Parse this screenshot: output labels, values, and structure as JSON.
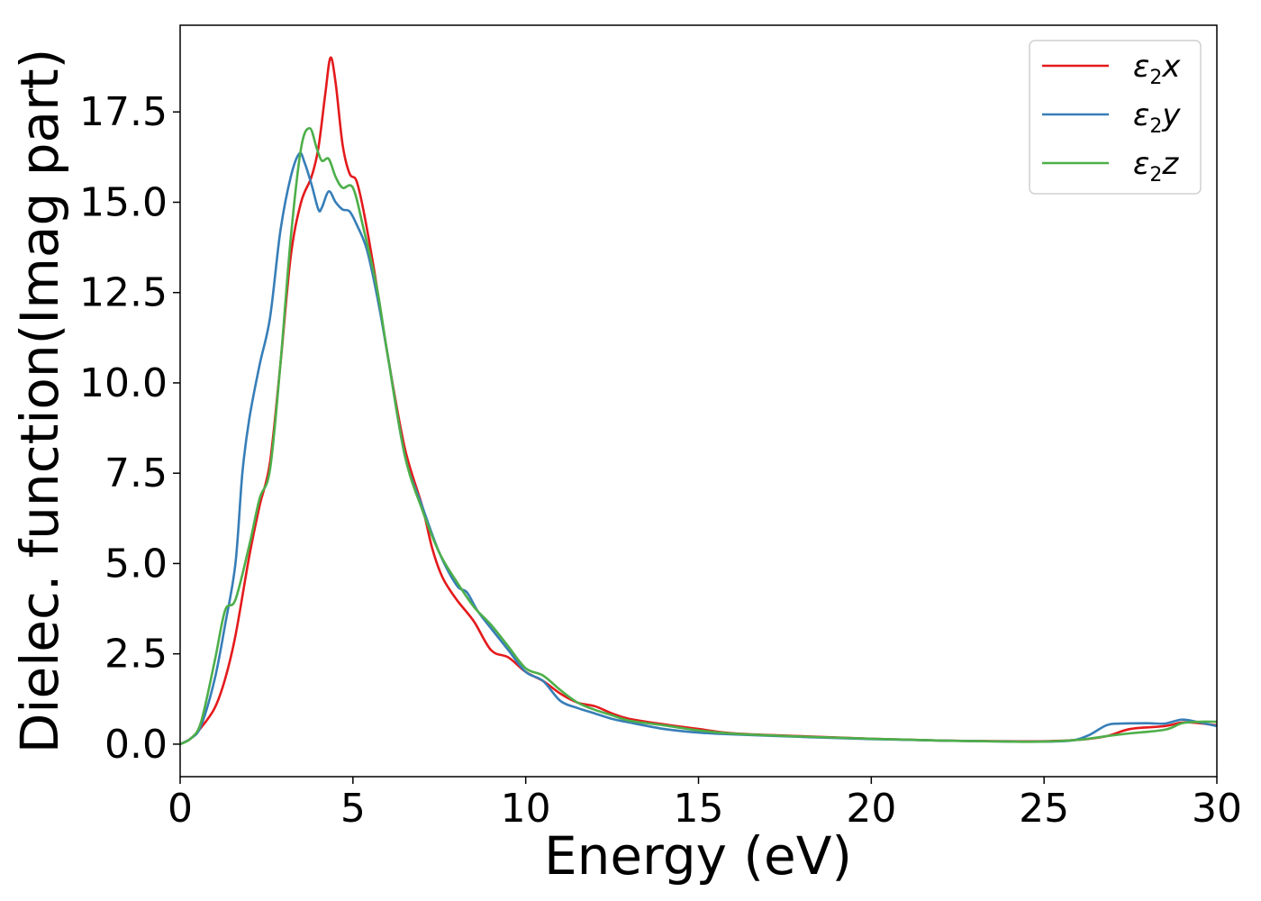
{
  "chart_data": {
    "type": "line",
    "title": "",
    "xlabel": "Energy (eV)",
    "ylabel": "Dielec. function(Imag part)",
    "xlim": [
      0,
      30
    ],
    "ylim": [
      -0.9,
      19.9
    ],
    "xticks": [
      0,
      5,
      10,
      15,
      20,
      25,
      30
    ],
    "xtick_labels": [
      "0",
      "5",
      "10",
      "15",
      "20",
      "25",
      "30"
    ],
    "yticks": [
      0.0,
      2.5,
      5.0,
      7.5,
      10.0,
      12.5,
      15.0,
      17.5
    ],
    "ytick_labels": [
      "0.0",
      "2.5",
      "5.0",
      "7.5",
      "10.0",
      "12.5",
      "15.0",
      "17.5"
    ],
    "grid": false,
    "legend_position": "top-right",
    "series": [
      {
        "name": "ε2x",
        "legend": {
          "base": "ε",
          "sub": "2",
          "suffix": "x"
        },
        "color": "#e41a1c",
        "points": [
          [
            0,
            0.0
          ],
          [
            0.3,
            0.15
          ],
          [
            0.6,
            0.45
          ],
          [
            1.0,
            1.0
          ],
          [
            1.3,
            1.8
          ],
          [
            1.6,
            3.0
          ],
          [
            2.0,
            5.2
          ],
          [
            2.3,
            6.6
          ],
          [
            2.6,
            7.8
          ],
          [
            2.9,
            10.5
          ],
          [
            3.2,
            13.5
          ],
          [
            3.5,
            15.0
          ],
          [
            3.8,
            15.7
          ],
          [
            4.0,
            16.5
          ],
          [
            4.2,
            18.0
          ],
          [
            4.35,
            19.0
          ],
          [
            4.5,
            18.3
          ],
          [
            4.7,
            16.6
          ],
          [
            4.9,
            15.8
          ],
          [
            5.1,
            15.6
          ],
          [
            5.3,
            14.8
          ],
          [
            5.6,
            13.2
          ],
          [
            6.0,
            10.8
          ],
          [
            6.5,
            8.2
          ],
          [
            7.0,
            6.6
          ],
          [
            7.3,
            5.4
          ],
          [
            7.6,
            4.6
          ],
          [
            8.0,
            4.0
          ],
          [
            8.5,
            3.4
          ],
          [
            9.0,
            2.6
          ],
          [
            9.5,
            2.4
          ],
          [
            10.0,
            2.0
          ],
          [
            10.5,
            1.75
          ],
          [
            11.0,
            1.4
          ],
          [
            11.5,
            1.15
          ],
          [
            12.0,
            1.05
          ],
          [
            12.5,
            0.85
          ],
          [
            13.0,
            0.7
          ],
          [
            14.0,
            0.55
          ],
          [
            15.0,
            0.42
          ],
          [
            16.0,
            0.3
          ],
          [
            18.0,
            0.22
          ],
          [
            20.0,
            0.15
          ],
          [
            22.0,
            0.1
          ],
          [
            24.0,
            0.08
          ],
          [
            25.0,
            0.08
          ],
          [
            26.0,
            0.12
          ],
          [
            26.8,
            0.22
          ],
          [
            27.5,
            0.42
          ],
          [
            28.5,
            0.5
          ],
          [
            29.0,
            0.6
          ],
          [
            29.5,
            0.58
          ],
          [
            30.0,
            0.52
          ]
        ]
      },
      {
        "name": "ε2y",
        "legend": {
          "base": "ε",
          "sub": "2",
          "suffix": "y"
        },
        "color": "#377eb8",
        "points": [
          [
            0,
            0.0
          ],
          [
            0.3,
            0.15
          ],
          [
            0.6,
            0.5
          ],
          [
            1.0,
            1.8
          ],
          [
            1.3,
            3.3
          ],
          [
            1.6,
            5.0
          ],
          [
            1.8,
            7.5
          ],
          [
            2.0,
            9.0
          ],
          [
            2.3,
            10.5
          ],
          [
            2.6,
            11.8
          ],
          [
            2.9,
            14.2
          ],
          [
            3.2,
            15.7
          ],
          [
            3.45,
            16.35
          ],
          [
            3.6,
            16.1
          ],
          [
            3.8,
            15.5
          ],
          [
            4.0,
            14.8
          ],
          [
            4.1,
            14.85
          ],
          [
            4.3,
            15.3
          ],
          [
            4.5,
            15.0
          ],
          [
            4.7,
            14.8
          ],
          [
            4.9,
            14.75
          ],
          [
            5.1,
            14.4
          ],
          [
            5.4,
            13.7
          ],
          [
            5.7,
            12.4
          ],
          [
            6.0,
            10.8
          ],
          [
            6.5,
            8.0
          ],
          [
            7.0,
            6.6
          ],
          [
            7.5,
            5.3
          ],
          [
            8.0,
            4.4
          ],
          [
            8.3,
            4.2
          ],
          [
            8.6,
            3.7
          ],
          [
            9.0,
            3.2
          ],
          [
            9.5,
            2.6
          ],
          [
            10.0,
            2.0
          ],
          [
            10.5,
            1.75
          ],
          [
            11.0,
            1.2
          ],
          [
            11.5,
            1.0
          ],
          [
            12.0,
            0.85
          ],
          [
            12.5,
            0.7
          ],
          [
            13.0,
            0.6
          ],
          [
            14.0,
            0.42
          ],
          [
            15.0,
            0.32
          ],
          [
            16.0,
            0.27
          ],
          [
            18.0,
            0.2
          ],
          [
            20.0,
            0.14
          ],
          [
            22.0,
            0.1
          ],
          [
            24.0,
            0.07
          ],
          [
            25.0,
            0.07
          ],
          [
            25.8,
            0.1
          ],
          [
            26.3,
            0.25
          ],
          [
            26.8,
            0.52
          ],
          [
            27.2,
            0.57
          ],
          [
            28.0,
            0.58
          ],
          [
            28.5,
            0.57
          ],
          [
            29.0,
            0.68
          ],
          [
            29.5,
            0.6
          ],
          [
            30.0,
            0.5
          ]
        ]
      },
      {
        "name": "ε2z",
        "legend": {
          "base": "ε",
          "sub": "2",
          "suffix": "z"
        },
        "color": "#4daf4a",
        "points": [
          [
            0,
            0.0
          ],
          [
            0.3,
            0.15
          ],
          [
            0.6,
            0.6
          ],
          [
            1.0,
            2.3
          ],
          [
            1.3,
            3.7
          ],
          [
            1.6,
            4.0
          ],
          [
            2.0,
            5.5
          ],
          [
            2.3,
            6.8
          ],
          [
            2.6,
            7.6
          ],
          [
            2.9,
            10.5
          ],
          [
            3.2,
            14.0
          ],
          [
            3.5,
            16.5
          ],
          [
            3.75,
            17.05
          ],
          [
            3.95,
            16.5
          ],
          [
            4.1,
            16.15
          ],
          [
            4.3,
            16.2
          ],
          [
            4.5,
            15.7
          ],
          [
            4.7,
            15.4
          ],
          [
            5.0,
            15.4
          ],
          [
            5.3,
            14.3
          ],
          [
            5.7,
            12.6
          ],
          [
            6.0,
            10.8
          ],
          [
            6.5,
            8.0
          ],
          [
            7.0,
            6.5
          ],
          [
            7.5,
            5.3
          ],
          [
            8.0,
            4.5
          ],
          [
            8.5,
            3.8
          ],
          [
            9.0,
            3.3
          ],
          [
            9.5,
            2.7
          ],
          [
            10.0,
            2.1
          ],
          [
            10.5,
            1.9
          ],
          [
            11.0,
            1.5
          ],
          [
            11.5,
            1.15
          ],
          [
            12.0,
            0.95
          ],
          [
            12.5,
            0.8
          ],
          [
            13.0,
            0.65
          ],
          [
            14.0,
            0.52
          ],
          [
            15.0,
            0.38
          ],
          [
            16.0,
            0.29
          ],
          [
            18.0,
            0.21
          ],
          [
            20.0,
            0.15
          ],
          [
            22.0,
            0.1
          ],
          [
            24.0,
            0.07
          ],
          [
            25.0,
            0.07
          ],
          [
            26.0,
            0.12
          ],
          [
            26.8,
            0.22
          ],
          [
            27.5,
            0.3
          ],
          [
            28.5,
            0.4
          ],
          [
            29.0,
            0.58
          ],
          [
            29.5,
            0.62
          ],
          [
            30.0,
            0.62
          ]
        ]
      }
    ]
  }
}
